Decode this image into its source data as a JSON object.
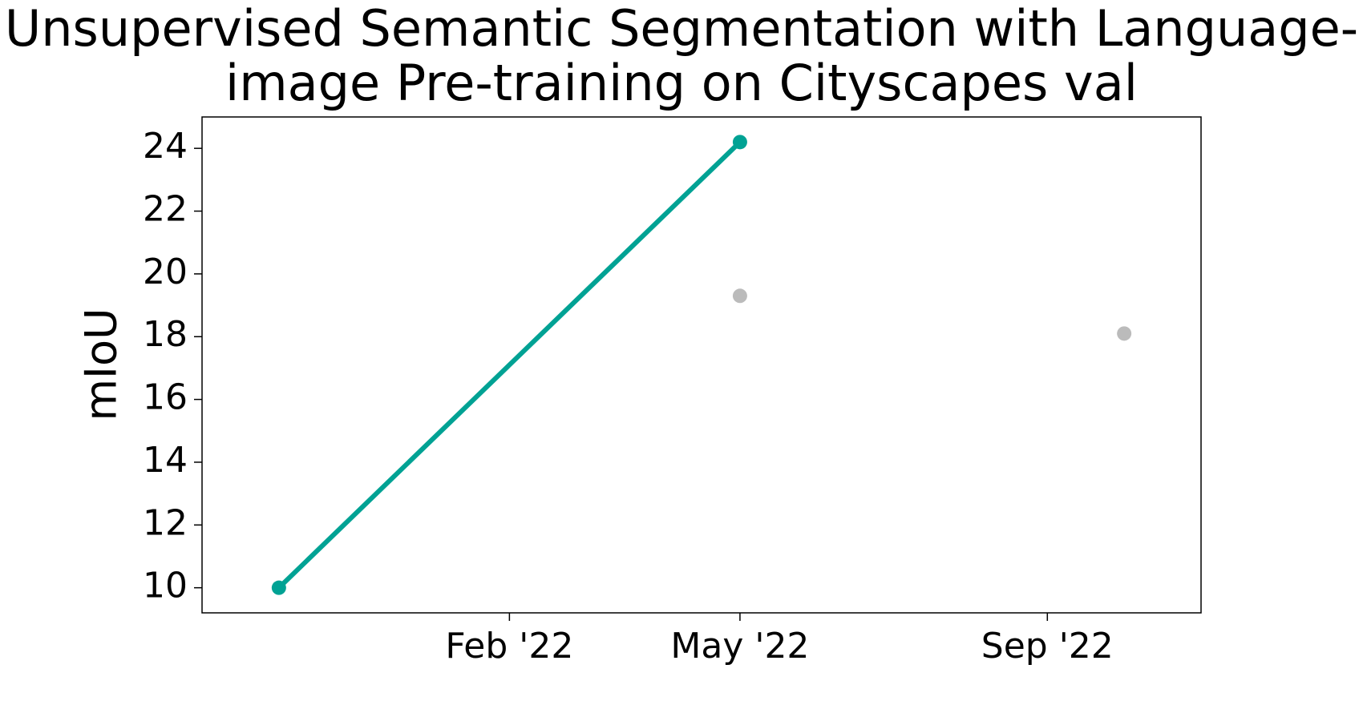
{
  "chart_data": {
    "type": "line",
    "title": [
      "Unsupervised Semantic Segmentation with Language-",
      "image Pre-training on Cityscapes val"
    ],
    "y_label": "mIoU",
    "xlim": [
      "2021-10",
      "2022-11"
    ],
    "xticks": [
      {
        "value": "2022-02",
        "label": "Feb '22"
      },
      {
        "value": "2022-05",
        "label": "May '22"
      },
      {
        "value": "2022-09",
        "label": "Sep '22"
      }
    ],
    "ylim": [
      9.2,
      25.0
    ],
    "yticks": [
      10,
      12,
      14,
      16,
      18,
      20,
      22,
      24
    ],
    "series": [
      {
        "color": "#00a294",
        "mode": "lines+markers",
        "x": [
          "2021-11",
          "2022-05"
        ],
        "values": [
          10,
          24.2
        ]
      },
      {
        "color": "#bbbbbb",
        "mode": "markers",
        "x": [
          "2022-05",
          "2022-10"
        ],
        "values": [
          19.3,
          18.1
        ]
      }
    ]
  }
}
